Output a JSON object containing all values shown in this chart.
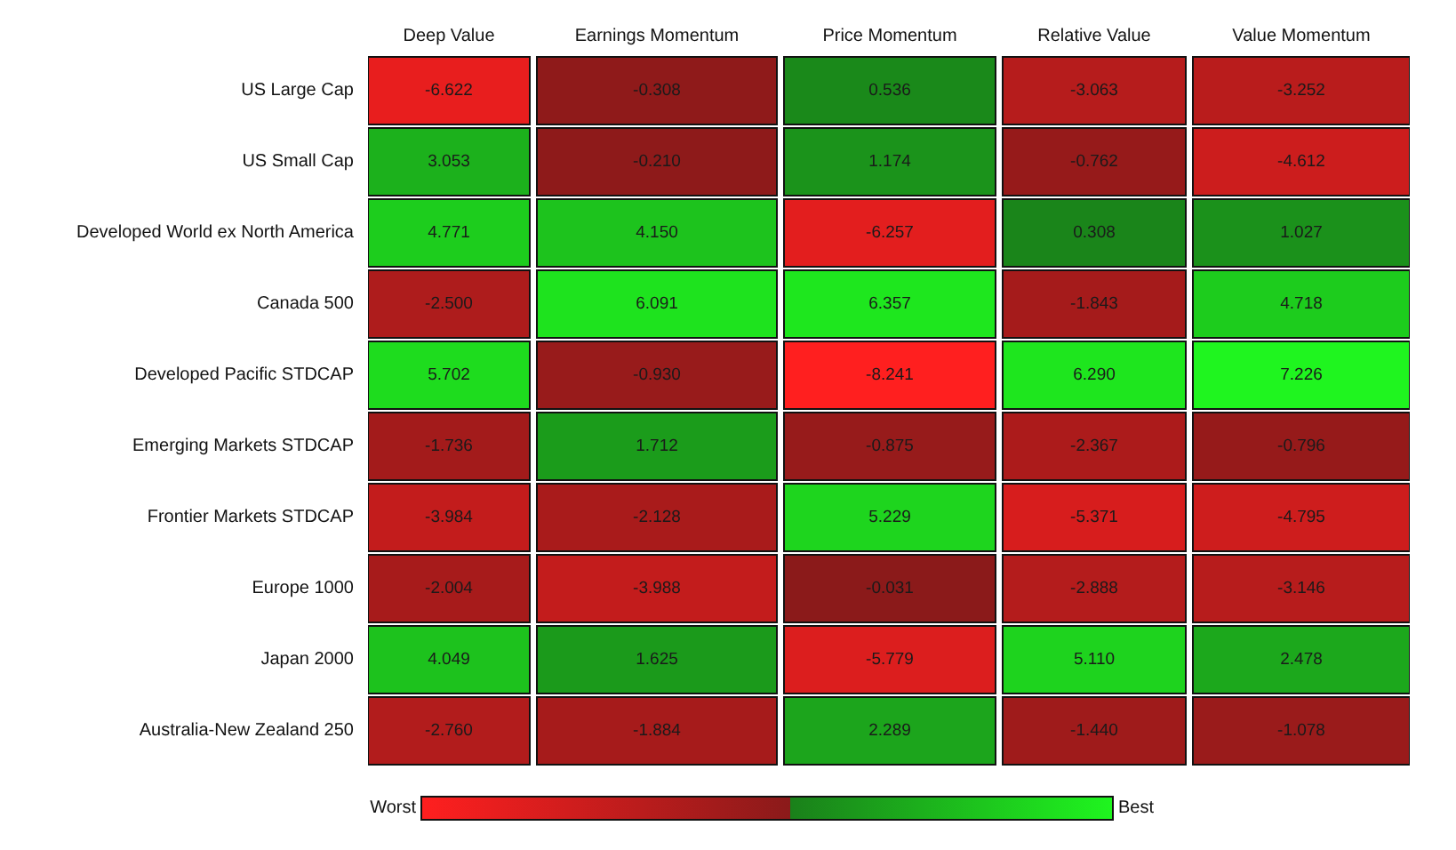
{
  "chart_data": {
    "type": "heatmap",
    "categories": [
      "Deep Value",
      "Earnings Momentum",
      "Price Momentum",
      "Relative Value",
      "Value Momentum"
    ],
    "y_categories": [
      "US Large Cap",
      "US Small Cap",
      "Developed World ex North America",
      "Canada 500",
      "Developed Pacific STDCAP",
      "Emerging Markets STDCAP",
      "Frontier Markets STDCAP",
      "Europe 1000",
      "Japan 2000",
      "Australia-New Zealand 250"
    ],
    "cells": [
      [
        -6.622,
        -0.308,
        0.536,
        -3.063,
        -3.252
      ],
      [
        3.053,
        -0.21,
        1.174,
        -0.762,
        -4.612
      ],
      [
        4.771,
        4.15,
        -6.257,
        0.308,
        1.027
      ],
      [
        -2.5,
        6.091,
        6.357,
        -1.843,
        4.718
      ],
      [
        5.702,
        -0.93,
        -8.241,
        6.29,
        7.226
      ],
      [
        -1.736,
        1.712,
        -0.875,
        -2.367,
        -0.796
      ],
      [
        -3.984,
        -2.128,
        5.229,
        -5.371,
        -4.795
      ],
      [
        -2.004,
        -3.988,
        -0.031,
        -2.888,
        -3.146
      ],
      [
        4.049,
        1.625,
        -5.779,
        5.11,
        2.478
      ],
      [
        -2.76,
        -1.884,
        2.289,
        -1.44,
        -1.078
      ]
    ],
    "cell_labels": [
      [
        "-6.622",
        "-0.308",
        "0.536",
        "-3.063",
        "-3.252"
      ],
      [
        "3.053",
        "-0.210",
        "1.174",
        "-0.762",
        "-4.612"
      ],
      [
        "4.771",
        "4.150",
        "-6.257",
        "0.308",
        "1.027"
      ],
      [
        "-2.500",
        "6.091",
        "6.357",
        "-1.843",
        "4.718"
      ],
      [
        "5.702",
        "-0.930",
        "-8.241",
        "6.290",
        "7.226"
      ],
      [
        "-1.736",
        "1.712",
        "-0.875",
        "-2.367",
        "-0.796"
      ],
      [
        "-3.984",
        "-2.128",
        "5.229",
        "-5.371",
        "-4.795"
      ],
      [
        "-2.004",
        "-3.988",
        "-0.031",
        "-2.888",
        "-3.146"
      ],
      [
        "4.049",
        "1.625",
        "-5.779",
        "5.110",
        "2.478"
      ],
      [
        "-2.760",
        "-1.884",
        "2.289",
        "-1.440",
        "-1.078"
      ]
    ],
    "annotations": [
      "Worst",
      "Best"
    ]
  }
}
